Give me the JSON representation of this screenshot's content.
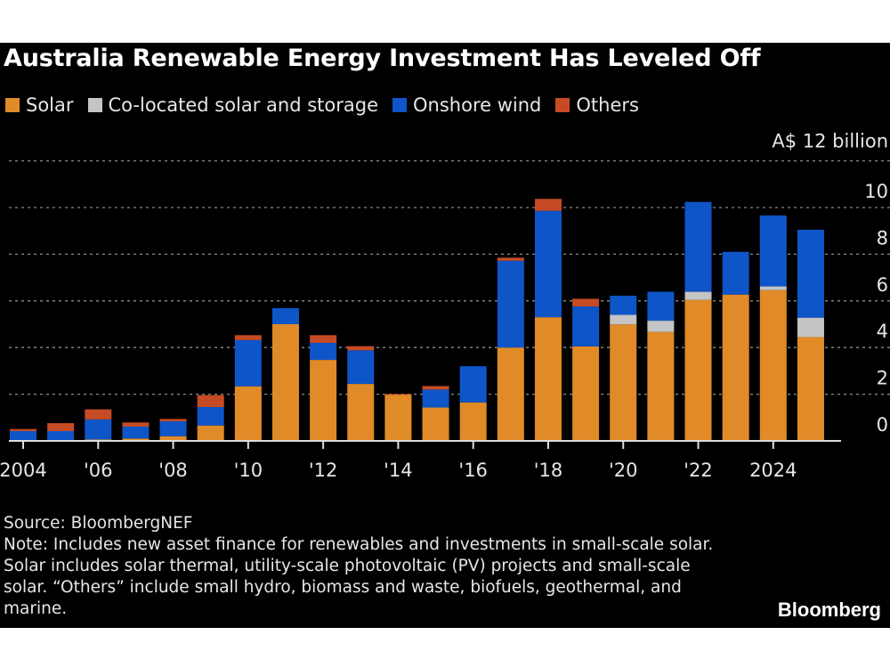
{
  "chart_data": {
    "type": "bar",
    "stacked": true,
    "title": "Australia Renewable Energy Investment Has Leveled Off",
    "ylabel": "",
    "yunit_label": "A$ 12 billion",
    "ylim": [
      0,
      12
    ],
    "yticks": [
      "0",
      "2",
      "4",
      "6",
      "8",
      "10"
    ],
    "y_axis_position": "right",
    "grid": true,
    "legend_position": "top-left",
    "categories": [
      2004,
      2005,
      2006,
      2007,
      2008,
      2009,
      2010,
      2011,
      2012,
      2013,
      2014,
      2015,
      2016,
      2017,
      2018,
      2019,
      2020,
      2021,
      2022,
      2023,
      2024,
      2025
    ],
    "xtick_labels": [
      {
        "year": 2004,
        "label": "2004"
      },
      {
        "year": 2006,
        "label": "'06"
      },
      {
        "year": 2008,
        "label": "'08"
      },
      {
        "year": 2010,
        "label": "'10"
      },
      {
        "year": 2012,
        "label": "'12"
      },
      {
        "year": 2014,
        "label": "'14"
      },
      {
        "year": 2016,
        "label": "'16"
      },
      {
        "year": 2018,
        "label": "'18"
      },
      {
        "year": 2020,
        "label": "'20"
      },
      {
        "year": 2022,
        "label": "'22"
      },
      {
        "year": 2024,
        "label": "2024"
      }
    ],
    "series": [
      {
        "name": "Solar",
        "color": "#e08b27",
        "values": [
          0.02,
          0.04,
          0.06,
          0.1,
          0.2,
          0.66,
          2.34,
          5.0,
          3.47,
          2.44,
          1.98,
          1.43,
          1.65,
          4.0,
          5.3,
          4.05,
          4.99,
          4.67,
          6.04,
          6.27,
          6.46,
          4.45
        ]
      },
      {
        "name": "Co-located solar and storage",
        "color": "#c4c4c4",
        "values": [
          0,
          0,
          0,
          0,
          0,
          0,
          0,
          0,
          0,
          0,
          0,
          0,
          0,
          0,
          0,
          0,
          0.41,
          0.48,
          0.35,
          0,
          0.16,
          0.83
        ]
      },
      {
        "name": "Onshore wind",
        "color": "#0e55c8",
        "values": [
          0.4,
          0.38,
          0.86,
          0.51,
          0.64,
          0.79,
          1.98,
          0.69,
          0.73,
          1.44,
          0,
          0.77,
          1.55,
          3.72,
          4.56,
          1.71,
          0.82,
          1.24,
          3.85,
          1.83,
          3.04,
          3.77
        ]
      },
      {
        "name": "Others",
        "color": "#c64b24",
        "values": [
          0.09,
          0.34,
          0.43,
          0.18,
          0.1,
          0.51,
          0.21,
          0,
          0.33,
          0.18,
          0.03,
          0.15,
          0,
          0.13,
          0.51,
          0.33,
          0,
          0,
          0,
          0,
          0,
          0
        ]
      }
    ]
  },
  "footer": {
    "source": "Source: BloombergNEF",
    "note": "Note: Includes new asset finance for renewables and investments in small-scale solar. Solar includes solar thermal, utility-scale photovoltaic (PV) projects and small-scale solar. “Others” include small hydro, biomass and waste, biofuels, geothermal, and marine."
  },
  "logo": "Bloomberg"
}
